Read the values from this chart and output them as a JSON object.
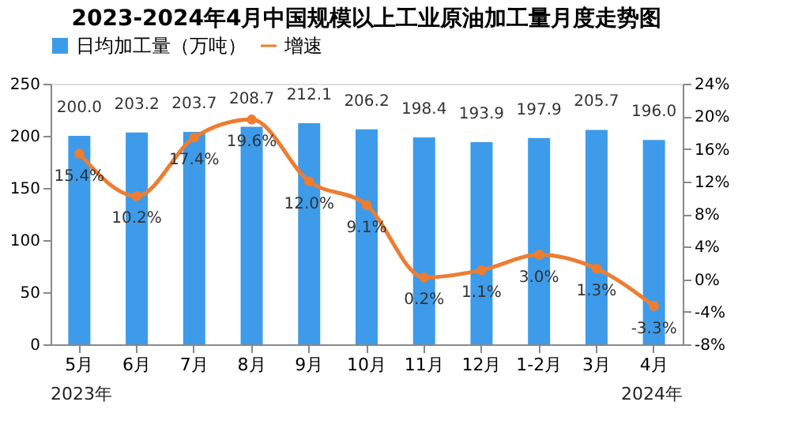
{
  "chart_data": {
    "type": "bar",
    "title": "2023-2024年4月中国规模以上工业原油加工量月度走势图",
    "categories": [
      "5月",
      "6月",
      "7月",
      "8月",
      "9月",
      "10月",
      "11月",
      "12月",
      "1-2月",
      "3月",
      "4月"
    ],
    "series": [
      {
        "name": "日均加工量（万吨）",
        "color": "#3d9be9",
        "values": [
          200.0,
          203.2,
          203.7,
          208.7,
          212.1,
          206.2,
          198.4,
          193.9,
          197.9,
          205.7,
          196.0
        ],
        "value_labels": [
          "200.0",
          "203.2",
          "203.7",
          "208.7",
          "212.1",
          "206.2",
          "198.4",
          "193.9",
          "197.9",
          "205.7",
          "196.0"
        ]
      },
      {
        "name": "增速",
        "type": "line",
        "axis": "y2",
        "color": "#ed7d31",
        "marker": "circle",
        "values": [
          15.4,
          10.2,
          17.4,
          19.6,
          12.0,
          9.1,
          0.2,
          1.1,
          3.0,
          1.3,
          -3.3
        ],
        "value_labels": [
          "15.4%",
          "10.2%",
          "17.4%",
          "19.6%",
          "12.0%",
          "9.1%",
          "0.2%",
          "1.1%",
          "3.0%",
          "1.3%",
          "-3.3%"
        ]
      }
    ],
    "ylim": [
      0,
      250
    ],
    "yticks": [
      0,
      50,
      100,
      150,
      200,
      250
    ],
    "y2lim": [
      -8,
      24
    ],
    "y2ticks": [
      {
        "value": -8,
        "label": "-8%"
      },
      {
        "value": -4,
        "label": "-4%"
      },
      {
        "value": 0,
        "label": "0%"
      },
      {
        "value": 4,
        "label": "4%"
      },
      {
        "value": 8,
        "label": "8%"
      },
      {
        "value": 12,
        "label": "12%"
      },
      {
        "value": 16,
        "label": "16%"
      },
      {
        "value": 20,
        "label": "20%"
      },
      {
        "value": 24,
        "label": "24%"
      }
    ],
    "annotations": [
      "2023年",
      "2024年"
    ],
    "legend": "top",
    "grid": false
  }
}
